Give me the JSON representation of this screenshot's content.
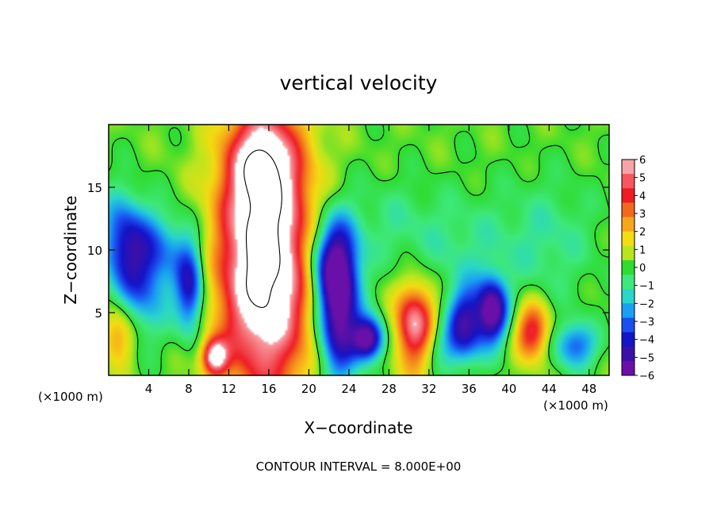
{
  "chart_data": {
    "type": "heatmap",
    "title": "vertical velocity",
    "xlabel": "X−coordinate",
    "ylabel": "Z−coordinate",
    "x_unit_left": "(×1000 m)",
    "x_unit_right": "(×1000 m)",
    "footer": "CONTOUR INTERVAL = 8.000E+00",
    "xlim": [
      0,
      50
    ],
    "ylim": [
      0,
      20
    ],
    "x_ticks": [
      4,
      8,
      12,
      16,
      20,
      24,
      28,
      32,
      36,
      40,
      44,
      48
    ],
    "y_ticks": [
      5,
      10,
      15
    ],
    "colorbar": {
      "min": -6,
      "max": 6,
      "ticks": [
        6,
        5,
        4,
        3,
        2,
        1,
        0,
        -1,
        -2,
        -3,
        -4,
        -5,
        -6
      ],
      "colors": [
        "#f7a3a8",
        "#f5565f",
        "#ef1c25",
        "#f2691c",
        "#f7a61c",
        "#f3dc12",
        "#b8e61e",
        "#2fdc2f",
        "#3ee87a",
        "#2ad6ca",
        "#1a9ff2",
        "#1a4ef0",
        "#1414c8",
        "#3a10a8",
        "#6a10a8"
      ]
    },
    "features": [
      {
        "x": 15.5,
        "z": 9.5,
        "sx": 3.2,
        "sz": 7.5,
        "w": 9
      },
      {
        "x": 15.2,
        "z": 17.2,
        "sx": 2.2,
        "sz": 2.5,
        "w": 3.5
      },
      {
        "x": 10.5,
        "z": 1.6,
        "sx": 0.9,
        "sz": 1.0,
        "w": 6
      },
      {
        "x": 30.5,
        "z": 3.8,
        "sx": 1.4,
        "sz": 2.4,
        "w": 6.5
      },
      {
        "x": 42.2,
        "z": 3.6,
        "sx": 1.2,
        "sz": 1.6,
        "w": 4.5
      },
      {
        "x": 0.8,
        "z": 3.5,
        "sx": 1.2,
        "sz": 1.8,
        "w": 3.2
      },
      {
        "x": 22.8,
        "z": 5.5,
        "sx": 1.4,
        "sz": 4.0,
        "w": -7
      },
      {
        "x": 25.8,
        "z": 3.0,
        "sx": 1.1,
        "sz": 1.2,
        "w": -6.5
      },
      {
        "x": 38.2,
        "z": 5.2,
        "sx": 1.1,
        "sz": 1.8,
        "w": -6.5
      },
      {
        "x": 35.5,
        "z": 4.5,
        "sx": 1.2,
        "sz": 2.0,
        "w": -4.5
      },
      {
        "x": 8.0,
        "z": 7.0,
        "sx": 1.0,
        "sz": 2.5,
        "w": -4.8
      },
      {
        "x": 3.0,
        "z": 7.5,
        "sx": 2.2,
        "sz": 3.0,
        "w": -3.5
      },
      {
        "x": 1.2,
        "z": 11.5,
        "sx": 1.6,
        "sz": 2.5,
        "w": -3.0
      },
      {
        "x": 46.5,
        "z": 2.5,
        "sx": 1.5,
        "sz": 1.3,
        "w": -3.6
      },
      {
        "x": 5.0,
        "z": 10.5,
        "sx": 2.5,
        "sz": 2.0,
        "w": -2.0
      },
      {
        "x": 33.0,
        "z": 2.5,
        "sx": 2.5,
        "sz": 1.5,
        "w": -2.2
      },
      {
        "x": 22.0,
        "z": 9.5,
        "sx": 2.0,
        "sz": 2.5,
        "w": -3.5
      },
      {
        "x": 35.0,
        "z": 10.5,
        "sx": 4.0,
        "sz": 3.0,
        "w": -1.2
      },
      {
        "x": 44.0,
        "z": 11.0,
        "sx": 3.5,
        "sz": 3.5,
        "w": -1.3
      },
      {
        "x": 28.0,
        "z": 12.5,
        "sx": 3.0,
        "sz": 2.5,
        "w": -0.9
      }
    ]
  }
}
